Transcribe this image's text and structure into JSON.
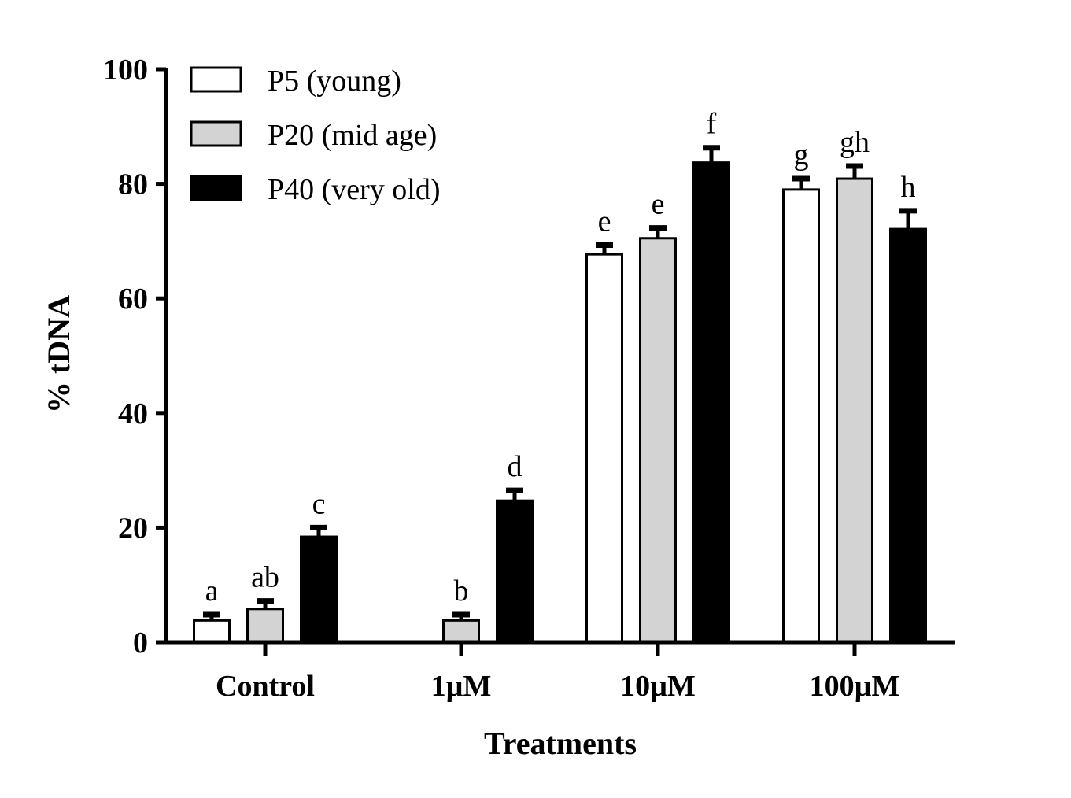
{
  "chart_data": {
    "type": "bar",
    "title": "",
    "xlabel": "Treatments",
    "ylabel": "% tDNA",
    "ylim": [
      0,
      100
    ],
    "yticks": [
      0,
      20,
      40,
      60,
      80,
      100
    ],
    "categories": [
      "Control",
      "1µM",
      "10µM",
      "100µM"
    ],
    "legend_position": "top-left",
    "series": [
      {
        "name": "P5 (young)",
        "color": "#ffffff",
        "values": [
          3.8,
          0,
          67.7,
          79.0
        ],
        "errors": [
          1.0,
          0,
          1.6,
          1.9
        ],
        "labels": [
          "a",
          "",
          "e",
          "g"
        ]
      },
      {
        "name": "P20 (mid age)",
        "color": "#d3d3d3",
        "values": [
          5.8,
          3.8,
          70.5,
          80.9
        ],
        "errors": [
          1.4,
          1.0,
          1.8,
          2.2
        ],
        "labels": [
          "ab",
          "b",
          "e",
          "gh"
        ]
      },
      {
        "name": "P40 (very old)",
        "color": "#000000",
        "values": [
          18.4,
          24.7,
          83.7,
          72.1
        ],
        "errors": [
          1.6,
          1.8,
          2.6,
          3.2
        ],
        "labels": [
          "c",
          "d",
          "f",
          "h"
        ]
      }
    ]
  }
}
